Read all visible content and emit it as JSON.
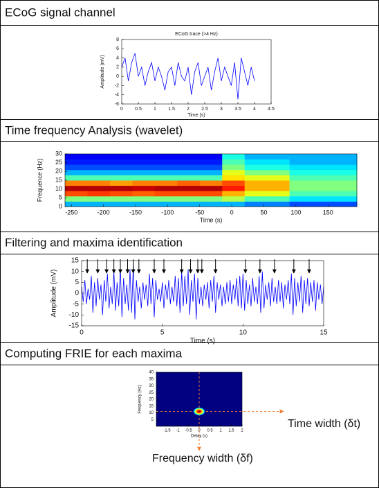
{
  "panels": [
    "ECoG signal channel",
    "Time frequency Analysis (wavelet)",
    "Filtering and maxima identification",
    "Computing FRIE for each maxima"
  ],
  "chart_data": [
    {
      "type": "line",
      "title": "ECoG trace (>4 Hz)",
      "x_label": "Time (s)",
      "y_label": "Amplitude (mV)",
      "color": "#0000ff",
      "x": [
        0,
        0.1,
        0.2,
        0.3,
        0.4,
        0.5,
        0.6,
        0.7,
        0.8,
        0.9,
        1,
        1.1,
        1.2,
        1.3,
        1.4,
        1.5,
        1.6,
        1.7,
        1.8,
        1.9,
        2,
        2.1,
        2.2,
        2.3,
        2.4,
        2.5,
        2.6,
        2.7,
        2.8,
        2.9,
        3,
        3.1,
        3.2,
        3.3,
        3.4,
        3.5,
        3.6,
        3.7,
        3.8,
        3.9,
        4
      ],
      "values": [
        2,
        4,
        -1,
        3,
        5,
        0,
        2,
        -2,
        1,
        3,
        -1,
        2,
        0,
        -3,
        1,
        2,
        -2,
        3,
        0,
        -1,
        2,
        -4,
        1,
        3,
        -2,
        0,
        2,
        -3,
        1,
        4,
        -1,
        2,
        0,
        -2,
        3,
        -5,
        4,
        1,
        -2,
        2,
        -1
      ],
      "xlim": [
        0,
        4.5
      ],
      "ylim": [
        -6,
        8
      ],
      "xticks": [
        0,
        0.5,
        1,
        1.5,
        2,
        2.5,
        3,
        3.5,
        4,
        4.5
      ],
      "yticks": [
        -6,
        -4,
        -2,
        0,
        2,
        4,
        6,
        8
      ]
    },
    {
      "type": "heatmap",
      "x_label": "Time (s)",
      "y_label": "Frequence (Hz)",
      "xbins": [
        -260,
        -225,
        -190,
        -155,
        -120,
        -85,
        -50,
        -15,
        20,
        55,
        90,
        125,
        160,
        195
      ],
      "ybins": [
        0,
        3,
        6,
        9,
        12,
        15,
        18,
        21,
        24,
        27,
        30
      ],
      "zlim": [
        0,
        1
      ],
      "z": [
        [
          0.3,
          0.3,
          0.3,
          0.3,
          0.3,
          0.3,
          0.3,
          0.3,
          0.25,
          0.25,
          0.2,
          0.2,
          0.2
        ],
        [
          0.5,
          0.5,
          0.5,
          0.5,
          0.5,
          0.5,
          0.5,
          0.55,
          0.45,
          0.45,
          0.35,
          0.35,
          0.35
        ],
        [
          0.8,
          0.82,
          0.8,
          0.78,
          0.8,
          0.8,
          0.8,
          0.7,
          0.6,
          0.6,
          0.45,
          0.45,
          0.45
        ],
        [
          0.95,
          0.95,
          0.95,
          0.93,
          0.95,
          0.95,
          0.95,
          0.85,
          0.7,
          0.7,
          0.5,
          0.5,
          0.5
        ],
        [
          0.75,
          0.75,
          0.72,
          0.75,
          0.75,
          0.78,
          0.75,
          0.8,
          0.7,
          0.7,
          0.5,
          0.5,
          0.5
        ],
        [
          0.45,
          0.45,
          0.45,
          0.45,
          0.45,
          0.45,
          0.45,
          0.65,
          0.6,
          0.6,
          0.45,
          0.45,
          0.45
        ],
        [
          0.3,
          0.3,
          0.3,
          0.3,
          0.3,
          0.3,
          0.3,
          0.6,
          0.5,
          0.5,
          0.4,
          0.4,
          0.4
        ],
        [
          0.2,
          0.2,
          0.2,
          0.2,
          0.2,
          0.2,
          0.2,
          0.5,
          0.4,
          0.4,
          0.35,
          0.35,
          0.35
        ],
        [
          0.15,
          0.15,
          0.15,
          0.15,
          0.15,
          0.15,
          0.15,
          0.45,
          0.35,
          0.35,
          0.3,
          0.3,
          0.3
        ],
        [
          0.12,
          0.12,
          0.12,
          0.12,
          0.12,
          0.12,
          0.12,
          0.4,
          0.3,
          0.3,
          0.3,
          0.3,
          0.3
        ]
      ],
      "xlim": [
        -260,
        195
      ],
      "ylim": [
        0,
        30
      ],
      "xticks": [
        -250,
        -200,
        -150,
        -100,
        -50,
        0,
        50,
        100,
        150
      ],
      "yticks": [
        0,
        5,
        10,
        15,
        20,
        25,
        30
      ]
    },
    {
      "type": "line",
      "x_label": "Time (s)",
      "y_label": "Amplitude (mV)",
      "color": "#0000ff",
      "arrow_color": "#000000",
      "x": [
        0,
        0.1,
        0.2,
        0.3,
        0.4,
        0.5,
        0.6,
        0.7,
        0.8,
        0.9,
        1,
        1.1,
        1.2,
        1.3,
        1.4,
        1.5,
        1.6,
        1.7,
        1.8,
        1.9,
        2,
        2.1,
        2.2,
        2.3,
        2.4,
        2.5,
        2.6,
        2.7,
        2.8,
        2.9,
        3,
        3.1,
        3.2,
        3.3,
        3.4,
        3.5,
        3.6,
        3.7,
        3.8,
        3.9,
        4,
        4.1,
        4.2,
        4.3,
        4.4,
        4.5,
        4.6,
        4.7,
        4.8,
        4.9,
        5,
        5.1,
        5.2,
        5.3,
        5.4,
        5.5,
        5.6,
        5.7,
        5.8,
        5.9,
        6,
        6.1,
        6.2,
        6.3,
        6.4,
        6.5,
        6.6,
        6.7,
        6.8,
        6.9,
        7,
        7.1,
        7.2,
        7.3,
        7.4,
        7.5,
        7.6,
        7.7,
        7.8,
        7.9,
        8,
        8.1,
        8.2,
        8.3,
        8.4,
        8.5,
        8.6,
        8.7,
        8.8,
        8.9,
        9,
        9.1,
        9.2,
        9.3,
        9.4,
        9.5,
        9.6,
        9.7,
        9.8,
        9.9,
        10,
        10.1,
        10.2,
        10.3,
        10.4,
        10.5,
        10.6,
        10.7,
        10.8,
        10.9,
        11,
        11.1,
        11.2,
        11.3,
        11.4,
        11.5,
        11.6,
        11.7,
        11.8,
        11.9,
        12,
        12.1,
        12.2,
        12.3,
        12.4,
        12.5,
        12.6,
        12.7,
        12.8,
        12.9,
        13,
        13.1,
        13.2,
        13.3,
        13.4,
        13.5,
        13.6,
        13.7,
        13.8,
        13.9,
        14,
        14.1,
        14.2,
        14.3,
        14.4,
        14.5,
        14.6,
        14.7,
        14.8,
        14.9,
        15
      ],
      "values": [
        3,
        -4,
        6,
        -5,
        2,
        -3,
        8,
        -9,
        5,
        -6,
        7,
        -3,
        4,
        -10,
        6,
        -4,
        9,
        -7,
        3,
        -5,
        10,
        -8,
        5,
        -6,
        12,
        -11,
        7,
        -5,
        4,
        -8,
        11,
        -9,
        13,
        -12,
        6,
        -4,
        3,
        -7,
        5,
        -3,
        4,
        -6,
        9,
        -5,
        7,
        -11,
        6,
        -3,
        2,
        -4,
        5,
        -7,
        4,
        -3,
        6,
        -5,
        3,
        -4,
        8,
        -6,
        7,
        -9,
        10,
        -6,
        8,
        -5,
        11,
        -10,
        6,
        -4,
        9,
        -12,
        7,
        -5,
        3,
        -6,
        4,
        -3,
        5,
        -7,
        6,
        -4,
        8,
        -9,
        5,
        -3,
        4,
        -6,
        3,
        -5,
        5,
        -4,
        6,
        -5,
        4,
        -3,
        7,
        -6,
        8,
        -7,
        9,
        -8,
        6,
        -5,
        4,
        -6,
        7,
        -4,
        3,
        -5,
        8,
        -9,
        10,
        -7,
        4,
        -3,
        5,
        -6,
        7,
        -4,
        3,
        -5,
        6,
        -4,
        5,
        -7,
        4,
        -3,
        6,
        -5,
        9,
        -10,
        7,
        -6,
        5,
        -4,
        8,
        -9,
        6,
        -5,
        7,
        -6,
        5,
        -4,
        6,
        -8,
        5,
        -3,
        4,
        -5,
        3
      ],
      "maxima_x": [
        0.35,
        1,
        1.55,
        2,
        2.4,
        2.85,
        3.2,
        3.55,
        4.5,
        5.1,
        6.2,
        6.75,
        7.2,
        7.45,
        8.3,
        10.15,
        11.05,
        11.95,
        13.15,
        14.1
      ],
      "xlim": [
        0,
        15
      ],
      "ylim": [
        -15,
        15
      ],
      "xticks": [
        0,
        5,
        10,
        15
      ],
      "yticks": [
        -15,
        -10,
        -5,
        0,
        5,
        10,
        15
      ]
    },
    {
      "type": "density",
      "x_label": "Delay (s)",
      "y_label": "Frequency (Hz)",
      "peak_x": 0,
      "peak_y": 11,
      "guide_color": "#ed7d31",
      "time_width_label": "Time width (δt)",
      "frequency_width_label": "Frequency width (δf)",
      "xlim": [
        -2,
        2
      ],
      "ylim": [
        0,
        40
      ],
      "xticks": [
        -1.5,
        -1,
        -0.5,
        0,
        0.5,
        1,
        1.5,
        2
      ],
      "yticks": [
        5,
        10,
        15,
        20,
        25,
        30,
        35,
        40
      ]
    }
  ]
}
